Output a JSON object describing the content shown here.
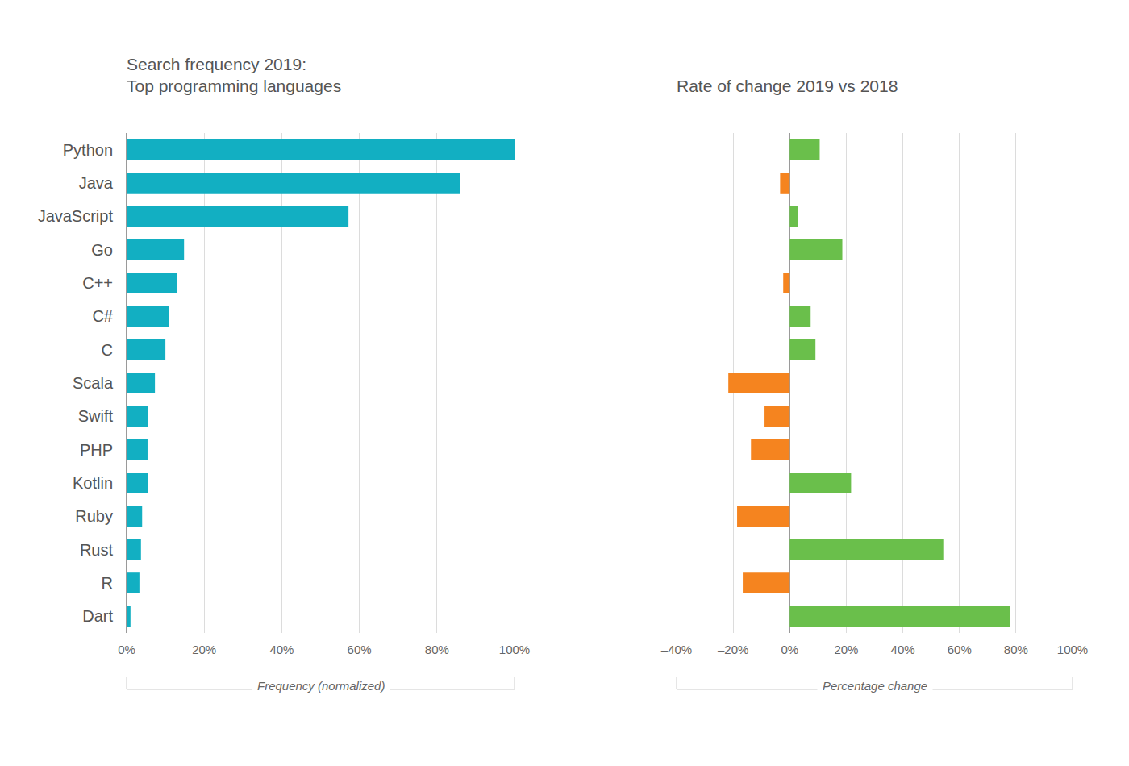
{
  "chart_data": [
    {
      "type": "bar",
      "orientation": "horizontal",
      "title": "Search frequency 2019:\nTop programming languages",
      "x_label": "Frequency (normalized)",
      "categories": [
        "Python",
        "Java",
        "JavaScript",
        "Go",
        "C++",
        "C#",
        "C",
        "Scala",
        "Swift",
        "PHP",
        "Kotlin",
        "Ruby",
        "Rust",
        "R",
        "Dart"
      ],
      "values": [
        100,
        86,
        57.2,
        14.8,
        12.9,
        11,
        10,
        7.3,
        5.6,
        5.4,
        5.5,
        4,
        3.7,
        3.3,
        1
      ],
      "color": "#12afc2",
      "xlim": [
        0,
        100
      ],
      "xticks": [
        {
          "value": 0,
          "label": "0%"
        },
        {
          "value": 20,
          "label": "20%"
        },
        {
          "value": 40,
          "label": "40%"
        },
        {
          "value": 60,
          "label": "60%"
        },
        {
          "value": 80,
          "label": "80%"
        },
        {
          "value": 100,
          "label": "100%"
        }
      ],
      "grid": true
    },
    {
      "type": "bar",
      "orientation": "horizontal",
      "title": "Rate of change 2019 vs 2018",
      "x_label": "Percentage change",
      "categories": [
        "Python",
        "Java",
        "JavaScript",
        "Go",
        "C++",
        "C#",
        "C",
        "Scala",
        "Swift",
        "PHP",
        "Kotlin",
        "Ruby",
        "Rust",
        "R",
        "Dart"
      ],
      "values": [
        10.6,
        -3.4,
        2.9,
        18.6,
        -2.3,
        7.4,
        9.1,
        -21.7,
        -8.9,
        -13.7,
        21.7,
        -18.6,
        54.3,
        -16.6,
        78
      ],
      "colors": [
        "#6abf4b",
        "#f5841f",
        "#6abf4b",
        "#6abf4b",
        "#f5841f",
        "#6abf4b",
        "#6abf4b",
        "#f5841f",
        "#f5841f",
        "#f5841f",
        "#6abf4b",
        "#f5841f",
        "#6abf4b",
        "#f5841f",
        "#6abf4b"
      ],
      "xlim": [
        -40,
        100
      ],
      "xticks": [
        {
          "value": -40,
          "label": "–40%"
        },
        {
          "value": -20,
          "label": "–20%"
        },
        {
          "value": 0,
          "label": "0%"
        },
        {
          "value": 20,
          "label": "20%"
        },
        {
          "value": 40,
          "label": "40%"
        },
        {
          "value": 60,
          "label": "60%"
        },
        {
          "value": 80,
          "label": "80%"
        },
        {
          "value": 100,
          "label": "100%"
        }
      ],
      "grid": true,
      "tick_labels": "x"
    }
  ]
}
